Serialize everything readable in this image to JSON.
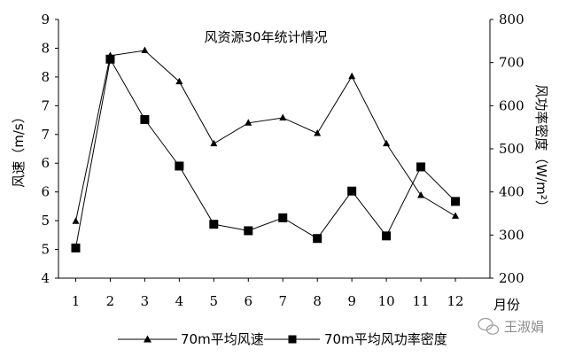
{
  "chart_data": {
    "type": "line",
    "title": "风资源30年统计情况",
    "xlabel": "月份",
    "ylabel": "风速（m/s）",
    "y2label": "风功率密度（W/m²）",
    "categories": [
      "1",
      "2",
      "3",
      "4",
      "5",
      "6",
      "7",
      "8",
      "9",
      "10",
      "11",
      "12"
    ],
    "y_ticks": [
      "4",
      "5",
      "5",
      "6",
      "6",
      "7",
      "7",
      "8",
      "8",
      "9"
    ],
    "y_range": [
      4,
      9
    ],
    "y2_ticks": [
      "200",
      "300",
      "400",
      "500",
      "600",
      "700",
      "800"
    ],
    "y2_range": [
      200,
      800
    ],
    "series": [
      {
        "name": "70m平均风速",
        "axis": "left",
        "marker": "triangle",
        "values": [
          5.1,
          8.3,
          8.4,
          7.8,
          6.6,
          7.0,
          7.1,
          6.8,
          7.9,
          6.6,
          5.6,
          5.2
        ]
      },
      {
        "name": "70m平均风功率密度",
        "axis": "right",
        "marker": "square",
        "values": [
          270,
          708,
          568,
          460,
          325,
          310,
          340,
          292,
          402,
          298,
          458,
          378
        ]
      }
    ],
    "legend": "bottom"
  },
  "watermark": "王淑娟"
}
